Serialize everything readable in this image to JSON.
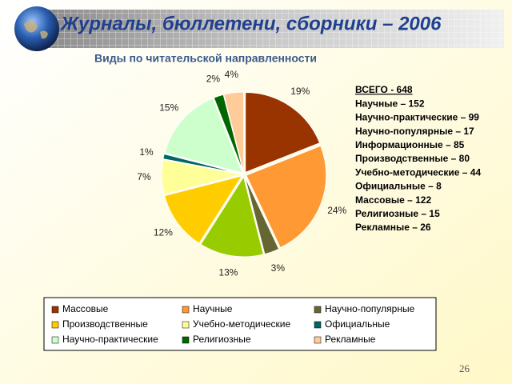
{
  "chart_data": {
    "type": "pie",
    "title": "Журналы, бюллетени, сборники – 2006",
    "subtitle": "Виды по читательской направленности",
    "categories": [
      "Массовые",
      "Научные",
      "Научно-популярные",
      null,
      "Производственные",
      "Учебно-методические",
      "Официальные",
      "Научно-практические",
      "Религиозные",
      "Рекламные"
    ],
    "values": [
      19,
      24,
      3,
      13,
      12,
      7,
      1,
      15,
      2,
      4
    ],
    "value_labels": [
      "19%",
      "24%",
      "3%",
      "13%",
      "12%",
      "7%",
      "1%",
      "15%",
      "2%",
      "4%"
    ],
    "colors": [
      "#993300",
      "#ff9933",
      "#666633",
      "#99cc00",
      "#ffcc00",
      "#ffff99",
      "#006666",
      "#ccffcc",
      "#006600",
      "#ffcc99"
    ],
    "annotations": [
      "ВСЕГО - 648",
      "Научные – 152",
      "Научно-практические – 99",
      "Научно-популярные – 17",
      "Информационные – 85",
      "Производственные – 80",
      "Учебно-методические – 44",
      "Официальные – 8",
      "Массовые – 122",
      "Религиозные – 15",
      "Рекламные – 26"
    ]
  },
  "page_number": "26"
}
